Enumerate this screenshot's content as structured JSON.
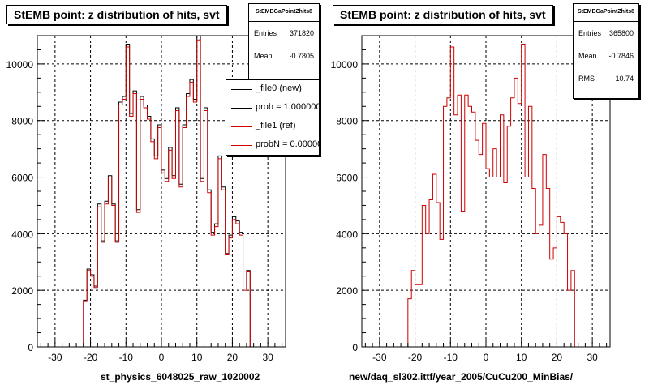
{
  "colors": {
    "file0": "#000000",
    "file1": "#cc0000",
    "background": "#ffffff"
  },
  "panels": [
    {
      "title": "StEMB point: z distribution of hits, svt",
      "xtitle": "st_physics_6048025_raw_1020002",
      "stats": {
        "name": "StEMBGaPointZhits8",
        "rows": [
          {
            "label": "Entries",
            "value": "371820"
          },
          {
            "label": "Mean",
            "value": "-0.7805"
          }
        ]
      },
      "legend": [
        {
          "label": "_file0 (new)",
          "color": "#000000"
        },
        {
          "label": "prob = 1.000000",
          "color": "#000000"
        },
        {
          "label": "_file1 (ref)",
          "color": "#cc0000"
        },
        {
          "label": "probN = 0.000000",
          "color": "#cc0000"
        }
      ]
    },
    {
      "title": "StEMB point: z distribution of hits, svt",
      "xtitle": "new/daq_sl302.ittf/year_2005/CuCu200_MinBias/",
      "stats": {
        "name": "StEMBGaPointZhits8",
        "rows": [
          {
            "label": "Entries",
            "value": "365800"
          },
          {
            "label": "Mean",
            "value": "-0.7846"
          },
          {
            "label": "RMS",
            "value": "10.74"
          }
        ]
      },
      "legend": []
    }
  ],
  "chart_data": [
    {
      "type": "histogram",
      "title": "StEMB point: z distribution of hits, svt",
      "xlabel": "st_physics_6048025_raw_1020002",
      "xlim": [
        -35,
        35
      ],
      "ylim": [
        0,
        11000
      ],
      "xticks": [
        -30,
        -20,
        -10,
        0,
        10,
        20,
        30
      ],
      "yticks": [
        0,
        2000,
        4000,
        6000,
        8000,
        10000
      ],
      "grid": true,
      "bin_width": 1,
      "x_start": -22,
      "series": [
        {
          "name": "_file0 (new)",
          "color": "#000000",
          "values": [
            1650,
            2750,
            2550,
            2150,
            5050,
            3750,
            5150,
            6050,
            5050,
            3750,
            8650,
            8850,
            10700,
            8250,
            9050,
            4850,
            8850,
            8550,
            8150,
            7350,
            6750,
            7850,
            6250,
            5950,
            7050,
            6050,
            8450,
            5750,
            7850,
            8950,
            9450,
            8750,
            11000,
            5950,
            8450,
            5550,
            4050,
            4350,
            6750,
            5650,
            3300,
            3950,
            4600,
            4450,
            4050,
            2050,
            2700,
            0
          ]
        },
        {
          "name": "_file1 (ref)",
          "color": "#cc0000",
          "values": [
            1600,
            2700,
            2500,
            2100,
            4950,
            3700,
            5050,
            6000,
            5000,
            3700,
            8550,
            8750,
            10600,
            8150,
            8950,
            4750,
            8750,
            8450,
            8050,
            7250,
            6650,
            7750,
            6150,
            5850,
            6950,
            5950,
            8350,
            5650,
            7750,
            8850,
            9350,
            8650,
            10850,
            5850,
            8350,
            5450,
            3950,
            4250,
            6650,
            5550,
            3250,
            3850,
            4500,
            4350,
            3950,
            2000,
            2650,
            0
          ]
        }
      ]
    },
    {
      "type": "histogram",
      "title": "StEMB point: z distribution of hits, svt",
      "xlabel": "new/daq_sl302.ittf/year_2005/CuCu200_MinBias/",
      "xlim": [
        -35,
        35
      ],
      "ylim": [
        0,
        11000
      ],
      "xticks": [
        -30,
        -20,
        -10,
        0,
        10,
        20,
        30
      ],
      "yticks": [
        0,
        2000,
        4000,
        6000,
        8000,
        10000
      ],
      "grid": true,
      "bin_width": 1,
      "x_start": -22,
      "series": [
        {
          "name": "",
          "color": "#cc0000",
          "values": [
            1700,
            2700,
            2200,
            2200,
            5000,
            4000,
            5200,
            6100,
            5100,
            3800,
            8500,
            8800,
            10600,
            8200,
            8900,
            4800,
            8900,
            8500,
            8300,
            7300,
            6800,
            7900,
            6300,
            6000,
            7000,
            6000,
            8200,
            5800,
            7800,
            8800,
            9500,
            8600,
            10700,
            6000,
            8500,
            5600,
            4000,
            4300,
            6800,
            5600,
            3100,
            3500,
            4600,
            4400,
            4000,
            2000,
            2700,
            0
          ]
        }
      ]
    }
  ]
}
